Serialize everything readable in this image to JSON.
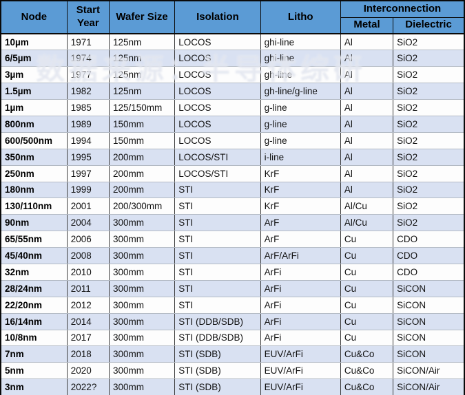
{
  "table": {
    "headers": {
      "node": "Node",
      "start_year": "Start Year",
      "wafer_size": "Wafer Size",
      "isolation": "Isolation",
      "litho": "Litho",
      "interconnection": "Interconnection",
      "metal": "Metal",
      "dielectric": "Dielectric"
    },
    "rows": [
      {
        "node": "10µm",
        "year": "1971",
        "wafer": "125nm",
        "isolation": "LOCOS",
        "litho": "ghi-line",
        "metal": "Al",
        "dielectric": "SiO2"
      },
      {
        "node": "6/5µm",
        "year": "1974",
        "wafer": "125nm",
        "isolation": "LOCOS",
        "litho": "ghi-line",
        "metal": "Al",
        "dielectric": "SiO2"
      },
      {
        "node": "3µm",
        "year": "1977",
        "wafer": "125nm",
        "isolation": "LOCOS",
        "litho": "gh-line",
        "metal": "Al",
        "dielectric": "SiO2"
      },
      {
        "node": "1.5µm",
        "year": "1982",
        "wafer": "125nm",
        "isolation": "LOCOS",
        "litho": "gh-line/g-line",
        "metal": "Al",
        "dielectric": "SiO2"
      },
      {
        "node": "1µm",
        "year": "1985",
        "wafer": "125/150mm",
        "isolation": "LOCOS",
        "litho": "g-line",
        "metal": "Al",
        "dielectric": "SiO2"
      },
      {
        "node": "800nm",
        "year": "1989",
        "wafer": "150mm",
        "isolation": "LOCOS",
        "litho": "g-line",
        "metal": "Al",
        "dielectric": "SiO2"
      },
      {
        "node": "600/500nm",
        "year": "1994",
        "wafer": "150mm",
        "isolation": "LOCOS",
        "litho": "g-line",
        "metal": "Al",
        "dielectric": "SiO2"
      },
      {
        "node": "350nm",
        "year": "1995",
        "wafer": "200mm",
        "isolation": "LOCOS/STI",
        "litho": "i-line",
        "metal": "Al",
        "dielectric": "SiO2"
      },
      {
        "node": "250nm",
        "year": "1997",
        "wafer": "200mm",
        "isolation": "LOCOS/STI",
        "litho": "KrF",
        "metal": "Al",
        "dielectric": "SiO2"
      },
      {
        "node": "180nm",
        "year": "1999",
        "wafer": "200mm",
        "isolation": "STI",
        "litho": "KrF",
        "metal": "Al",
        "dielectric": "SiO2"
      },
      {
        "node": "130/110nm",
        "year": "2001",
        "wafer": "200/300mm",
        "isolation": "STI",
        "litho": "KrF",
        "metal": "Al/Cu",
        "dielectric": "SiO2"
      },
      {
        "node": "90nm",
        "year": "2004",
        "wafer": "300mm",
        "isolation": "STI",
        "litho": "ArF",
        "metal": "Al/Cu",
        "dielectric": "SiO2"
      },
      {
        "node": "65/55nm",
        "year": "2006",
        "wafer": "300mm",
        "isolation": "STI",
        "litho": "ArF",
        "metal": "Cu",
        "dielectric": "CDO"
      },
      {
        "node": "45/40nm",
        "year": "2008",
        "wafer": "300mm",
        "isolation": "STI",
        "litho": "ArF/ArFi",
        "metal": "Cu",
        "dielectric": "CDO"
      },
      {
        "node": "32nm",
        "year": "2010",
        "wafer": "300mm",
        "isolation": "STI",
        "litho": "ArFi",
        "metal": "Cu",
        "dielectric": "CDO"
      },
      {
        "node": "28/24nm",
        "year": "2011",
        "wafer": "300mm",
        "isolation": "STI",
        "litho": "ArFi",
        "metal": "Cu",
        "dielectric": "SiCON"
      },
      {
        "node": "22/20nm",
        "year": "2012",
        "wafer": "300mm",
        "isolation": "STI",
        "litho": "ArFi",
        "metal": "Cu",
        "dielectric": "SiCON"
      },
      {
        "node": "16/14nm",
        "year": "2014",
        "wafer": "300mm",
        "isolation": "STI (DDB/SDB)",
        "litho": "ArFi",
        "metal": "Cu",
        "dielectric": "SiCON"
      },
      {
        "node": "10/8nm",
        "year": "2017",
        "wafer": "300mm",
        "isolation": "STI (DDB/SDB)",
        "litho": "ArFi",
        "metal": "Cu",
        "dielectric": "SiCON"
      },
      {
        "node": "7nm",
        "year": "2018",
        "wafer": "300mm",
        "isolation": "STI (SDB)",
        "litho": "EUV/ArFi",
        "metal": "Cu&Co",
        "dielectric": "SiCON"
      },
      {
        "node": "5nm",
        "year": "2020",
        "wafer": "300mm",
        "isolation": "STI (SDB)",
        "litho": "EUV/ArFi",
        "metal": "Cu&Co",
        "dielectric": "SiCON/Air"
      },
      {
        "node": "3nm",
        "year": "2022?",
        "wafer": "300mm",
        "isolation": "STI (SDB)",
        "litho": "EUV/ArFi",
        "metal": "Cu&Co",
        "dielectric": "SiCON/Air"
      }
    ]
  },
  "watermark": {
    "text": "数据来源：半导体综研"
  },
  "colors": {
    "header_bg": "#5B9BD5",
    "row_even_bg": "#d9e1f2",
    "row_odd_bg": "#fdfdfd",
    "outer_border": "#0a0a0a",
    "column_border": "#3a3a3a",
    "row_border": "#b3bac4"
  }
}
